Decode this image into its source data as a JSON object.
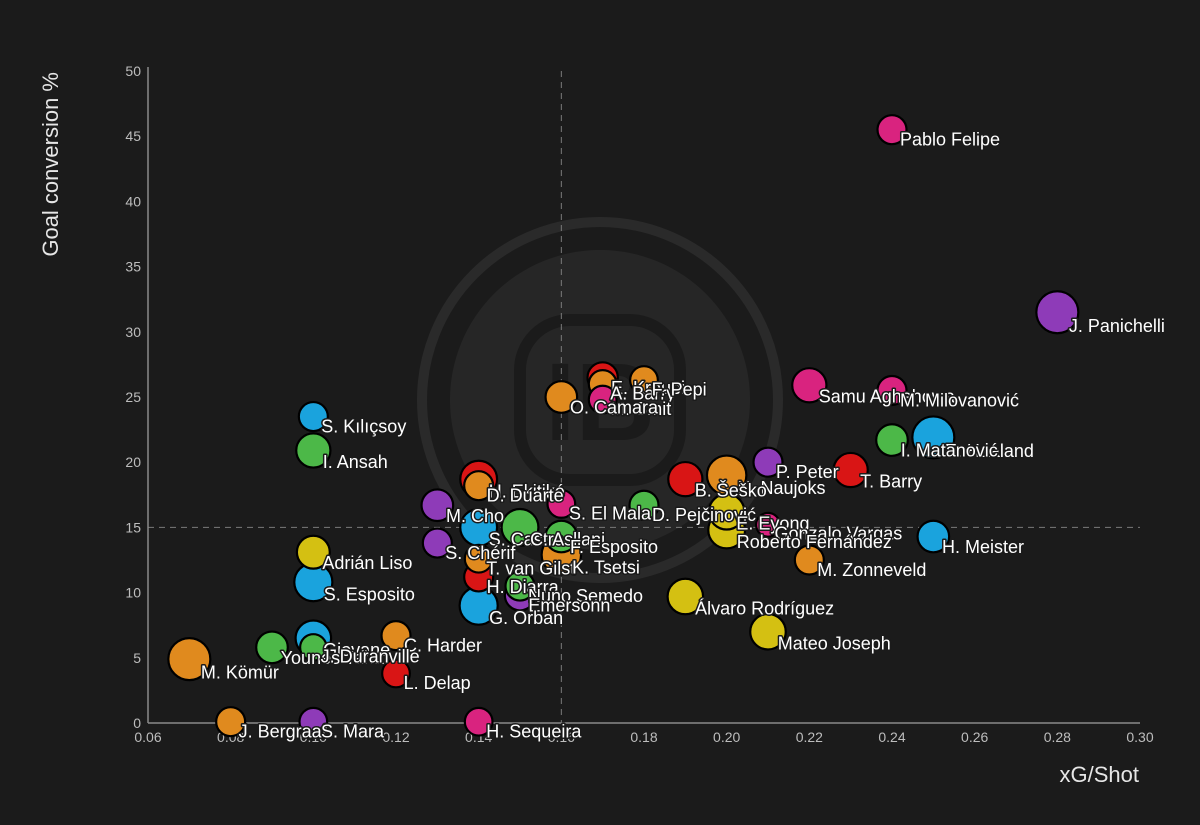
{
  "chart_data": {
    "type": "scatter",
    "title": "",
    "xlabel": "xG/Shot",
    "ylabel": "Goal conversion %",
    "xlim": [
      0.06,
      0.3
    ],
    "ylim": [
      0,
      50
    ],
    "x_ticks": [
      "0.06",
      "0.08",
      "0.10",
      "0.12",
      "0.14",
      "0.16",
      "0.18",
      "0.20",
      "0.22",
      "0.24",
      "0.26",
      "0.28",
      "0.30"
    ],
    "y_ticks": [
      "0",
      "5",
      "10",
      "15",
      "20",
      "25",
      "30",
      "35",
      "40",
      "45",
      "50"
    ],
    "reference_lines": {
      "x": 0.16,
      "y": 15
    },
    "grid": false,
    "colors": {
      "background": "#1b1b1b",
      "axis": "#8a8a8a",
      "reference": "#7a7a7a",
      "orange": "#e08a1e",
      "pink": "#d9237f",
      "red": "#d91515",
      "purple": "#8e3bb8",
      "green": "#4cb848",
      "blue": "#1aa3dd",
      "yellow": "#d4c012"
    },
    "points": [
      {
        "label": "Pablo Felipe",
        "x": 0.24,
        "y": 45.5,
        "size": 0.5,
        "color": "pink"
      },
      {
        "label": "J. Panichelli",
        "x": 0.28,
        "y": 31.5,
        "size": 1.0,
        "color": "purple"
      },
      {
        "label": "Samu Aghehowa",
        "x": 0.22,
        "y": 25.9,
        "size": 0.7,
        "color": "pink"
      },
      {
        "label": "M. Milovanović",
        "x": 0.24,
        "y": 25.5,
        "size": 0.5,
        "color": "pink"
      },
      {
        "label": "E. Haaland",
        "x": 0.25,
        "y": 21.9,
        "size": 1.0,
        "color": "blue"
      },
      {
        "label": "I. Matanović",
        "x": 0.24,
        "y": 21.7,
        "size": 0.6,
        "color": "green"
      },
      {
        "label": "P. Peter",
        "x": 0.21,
        "y": 20.0,
        "size": 0.5,
        "color": "purple"
      },
      {
        "label": "T. Barry",
        "x": 0.23,
        "y": 19.4,
        "size": 0.7,
        "color": "red"
      },
      {
        "label": "N. Naujoks",
        "x": 0.2,
        "y": 19.0,
        "size": 0.9,
        "color": "orange"
      },
      {
        "label": "B. Šeško",
        "x": 0.19,
        "y": 18.7,
        "size": 0.7,
        "color": "red"
      },
      {
        "label": "E. Kroupi",
        "x": 0.17,
        "y": 26.5,
        "size": 0.55,
        "color": "red"
      },
      {
        "label": "A. Barry",
        "x": 0.17,
        "y": 26.0,
        "size": 0.45,
        "color": "orange"
      },
      {
        "label": "F. Pepi",
        "x": 0.18,
        "y": 26.3,
        "size": 0.45,
        "color": "orange"
      },
      {
        "label": "M. Smit",
        "x": 0.17,
        "y": 24.8,
        "size": 0.45,
        "color": "pink"
      },
      {
        "label": "O. Camara",
        "x": 0.16,
        "y": 25.0,
        "size": 0.6,
        "color": "orange"
      },
      {
        "label": "S. Kılıçsoy",
        "x": 0.1,
        "y": 23.5,
        "size": 0.5,
        "color": "blue"
      },
      {
        "label": "I. Ansah",
        "x": 0.1,
        "y": 20.9,
        "size": 0.7,
        "color": "green"
      },
      {
        "label": "H. Ekitiké",
        "x": 0.14,
        "y": 18.7,
        "size": 0.8,
        "color": "red"
      },
      {
        "label": "D. Duarte",
        "x": 0.14,
        "y": 18.2,
        "size": 0.5,
        "color": "orange"
      },
      {
        "label": "S. El Mala",
        "x": 0.16,
        "y": 16.8,
        "size": 0.45,
        "color": "pink"
      },
      {
        "label": "M. Cho",
        "x": 0.13,
        "y": 16.7,
        "size": 0.6,
        "color": "purple"
      },
      {
        "label": "D. Pejčinović",
        "x": 0.18,
        "y": 16.7,
        "size": 0.5,
        "color": "green"
      },
      {
        "label": "E. Eyong",
        "x": 0.2,
        "y": 16.2,
        "size": 0.75,
        "color": "yellow"
      },
      {
        "label": "S. Castro",
        "x": 0.14,
        "y": 15.0,
        "size": 0.8,
        "color": "blue"
      },
      {
        "label": "C. Asllani",
        "x": 0.15,
        "y": 15.0,
        "size": 0.8,
        "color": "green"
      },
      {
        "label": "Gonzalo Vargas",
        "x": 0.21,
        "y": 15.2,
        "size": 0.3,
        "color": "pink"
      },
      {
        "label": "Roberto Fernández",
        "x": 0.2,
        "y": 14.8,
        "size": 0.8,
        "color": "yellow"
      },
      {
        "label": "H. Meister",
        "x": 0.25,
        "y": 14.3,
        "size": 0.6,
        "color": "blue"
      },
      {
        "label": "F. Esposito",
        "x": 0.16,
        "y": 14.3,
        "size": 0.6,
        "color": "green"
      },
      {
        "label": "S. Chérif",
        "x": 0.13,
        "y": 13.8,
        "size": 0.5,
        "color": "purple"
      },
      {
        "label": "Adrián Liso",
        "x": 0.1,
        "y": 13.1,
        "size": 0.65,
        "color": "yellow"
      },
      {
        "label": "T. van Gilst",
        "x": 0.14,
        "y": 12.6,
        "size": 0.45,
        "color": "orange"
      },
      {
        "label": "M. Zonneveld",
        "x": 0.22,
        "y": 12.5,
        "size": 0.5,
        "color": "orange"
      },
      {
        "label": "K. Tsetsi",
        "x": 0.16,
        "y": 12.9,
        "size": 0.9,
        "color": "orange"
      },
      {
        "label": "S. Esposito",
        "x": 0.1,
        "y": 10.8,
        "size": 0.85,
        "color": "blue"
      },
      {
        "label": "H. Diarra",
        "x": 0.14,
        "y": 11.2,
        "size": 0.5,
        "color": "red"
      },
      {
        "label": "Nuno Semedo",
        "x": 0.15,
        "y": 10.5,
        "size": 0.5,
        "color": "green"
      },
      {
        "label": "Emersonn",
        "x": 0.15,
        "y": 9.8,
        "size": 0.55,
        "color": "purple"
      },
      {
        "label": "Álvaro Rodríguez",
        "x": 0.19,
        "y": 9.7,
        "size": 0.75,
        "color": "yellow"
      },
      {
        "label": "G. Orban",
        "x": 0.14,
        "y": 9.0,
        "size": 0.85,
        "color": "blue"
      },
      {
        "label": "Mateo Joseph",
        "x": 0.21,
        "y": 7.0,
        "size": 0.75,
        "color": "yellow"
      },
      {
        "label": "Giovane",
        "x": 0.1,
        "y": 6.5,
        "size": 0.75,
        "color": "blue"
      },
      {
        "label": "C. Harder",
        "x": 0.12,
        "y": 6.7,
        "size": 0.5,
        "color": "orange"
      },
      {
        "label": "Younes Taha",
        "x": 0.09,
        "y": 5.8,
        "size": 0.6,
        "color": "green"
      },
      {
        "label": "M. Kömür",
        "x": 0.07,
        "y": 4.9,
        "size": 1.0,
        "color": "orange"
      },
      {
        "label": "J. Duranville",
        "x": 0.1,
        "y": 5.8,
        "size": 0.4,
        "color": "green"
      },
      {
        "label": "L. Delap",
        "x": 0.12,
        "y": 3.8,
        "size": 0.45,
        "color": "red"
      },
      {
        "label": "J. Bergraaf",
        "x": 0.08,
        "y": 0.1,
        "size": 0.5,
        "color": "orange"
      },
      {
        "label": "S. Mara",
        "x": 0.1,
        "y": 0.1,
        "size": 0.45,
        "color": "purple"
      },
      {
        "label": "H. Sequeira",
        "x": 0.14,
        "y": 0.1,
        "size": 0.45,
        "color": "pink"
      }
    ]
  }
}
